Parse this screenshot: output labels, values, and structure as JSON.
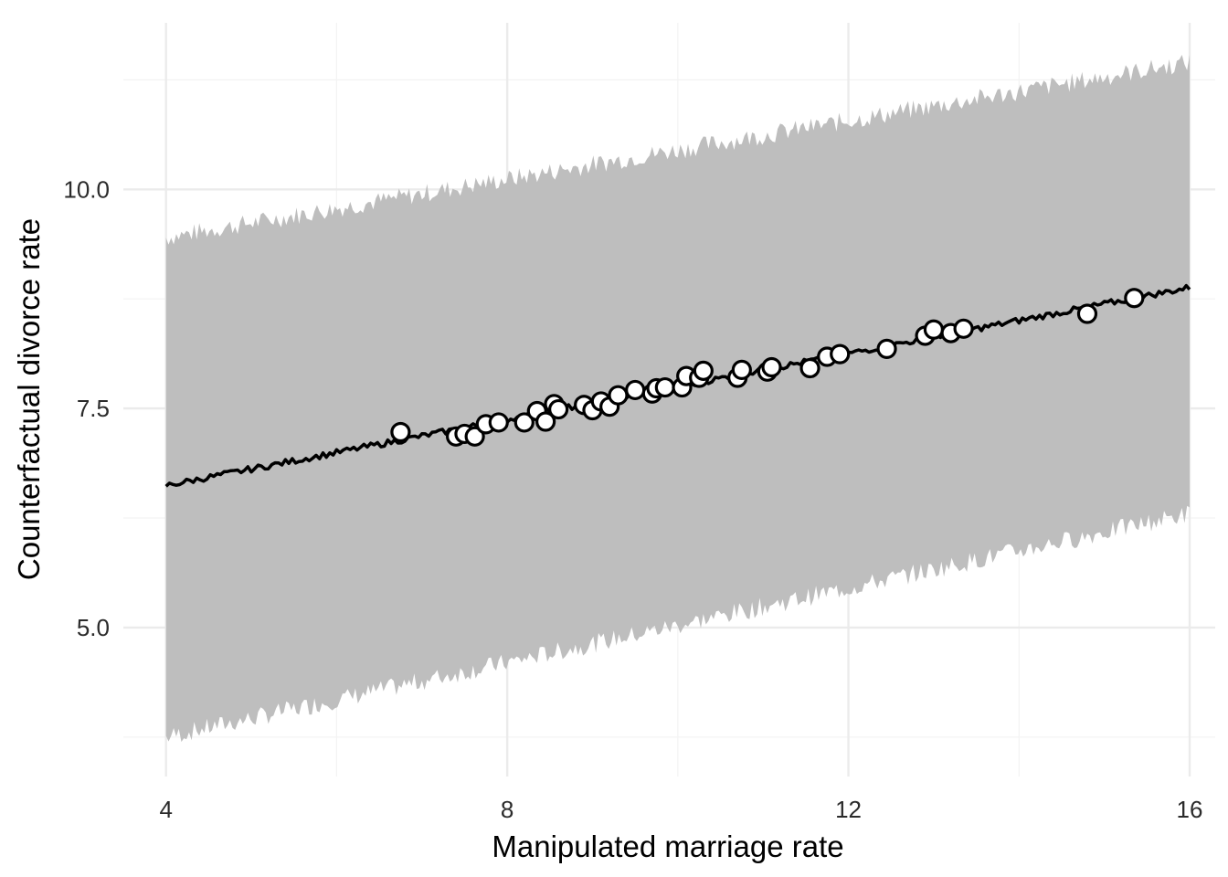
{
  "chart_data": {
    "type": "line",
    "title": "",
    "xlabel": "Manipulated marriage rate",
    "ylabel": "Counterfactual divorce rate",
    "xlim": [
      3.5,
      16.3
    ],
    "ylim": [
      3.3,
      11.9
    ],
    "x_ticks": [
      4,
      8,
      12,
      16
    ],
    "x_tick_labels": [
      "4",
      "8",
      "12",
      "16"
    ],
    "y_ticks": [
      5.0,
      7.5,
      10.0
    ],
    "y_tick_labels": [
      "5.0",
      "7.5",
      "10.0"
    ],
    "grid": true,
    "legend": "none",
    "mean_line": {
      "x": [
        4,
        16
      ],
      "y": [
        6.62,
        8.88
      ]
    },
    "interval": {
      "x": [
        4,
        16
      ],
      "lower": [
        3.75,
        6.3
      ],
      "upper": [
        9.45,
        11.45
      ]
    },
    "points": [
      {
        "x": 6.75,
        "y": 7.23
      },
      {
        "x": 7.4,
        "y": 7.18
      },
      {
        "x": 7.5,
        "y": 7.21
      },
      {
        "x": 7.62,
        "y": 7.18
      },
      {
        "x": 7.75,
        "y": 7.32
      },
      {
        "x": 7.9,
        "y": 7.34
      },
      {
        "x": 8.2,
        "y": 7.34
      },
      {
        "x": 8.35,
        "y": 7.47
      },
      {
        "x": 8.45,
        "y": 7.35
      },
      {
        "x": 8.55,
        "y": 7.55
      },
      {
        "x": 8.6,
        "y": 7.49
      },
      {
        "x": 8.9,
        "y": 7.54
      },
      {
        "x": 9.0,
        "y": 7.48
      },
      {
        "x": 9.1,
        "y": 7.58
      },
      {
        "x": 9.2,
        "y": 7.52
      },
      {
        "x": 9.3,
        "y": 7.65
      },
      {
        "x": 9.5,
        "y": 7.71
      },
      {
        "x": 9.7,
        "y": 7.67
      },
      {
        "x": 9.75,
        "y": 7.73
      },
      {
        "x": 9.85,
        "y": 7.74
      },
      {
        "x": 10.05,
        "y": 7.74
      },
      {
        "x": 10.1,
        "y": 7.87
      },
      {
        "x": 10.25,
        "y": 7.85
      },
      {
        "x": 10.3,
        "y": 7.93
      },
      {
        "x": 10.7,
        "y": 7.85
      },
      {
        "x": 10.75,
        "y": 7.94
      },
      {
        "x": 11.05,
        "y": 7.92
      },
      {
        "x": 11.1,
        "y": 7.97
      },
      {
        "x": 11.55,
        "y": 7.96
      },
      {
        "x": 11.75,
        "y": 8.09
      },
      {
        "x": 11.9,
        "y": 8.12
      },
      {
        "x": 12.45,
        "y": 8.18
      },
      {
        "x": 12.9,
        "y": 8.33
      },
      {
        "x": 13.0,
        "y": 8.4
      },
      {
        "x": 13.2,
        "y": 8.36
      },
      {
        "x": 13.35,
        "y": 8.41
      },
      {
        "x": 14.8,
        "y": 8.58
      },
      {
        "x": 15.35,
        "y": 8.76
      }
    ],
    "colors": {
      "interval": "#bebebe",
      "line": "#000000",
      "point_fill": "#ffffff",
      "point_stroke": "#000000",
      "grid_major": "#ebebeb",
      "grid_minor": "#f3f3f3"
    }
  }
}
